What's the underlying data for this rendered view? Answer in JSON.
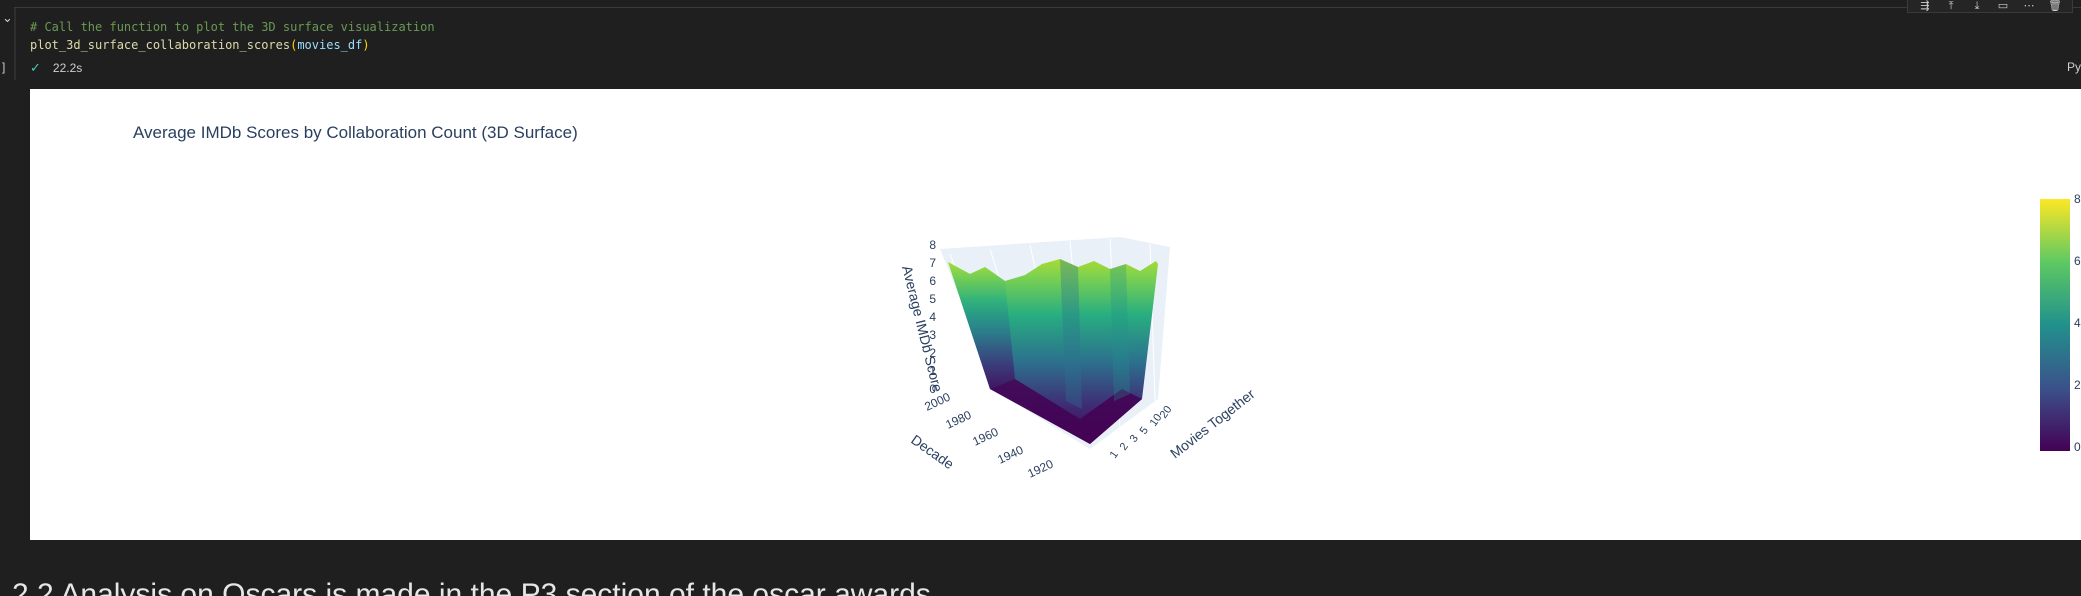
{
  "code": {
    "comment": "# Call the function to plot the 3D surface visualization",
    "function_name": "plot_3d_surface_collaboration_scores",
    "argument": "movies_df"
  },
  "status": {
    "duration": "22.2s",
    "language": "Py"
  },
  "chart_data": {
    "type": "surface",
    "title": "Average IMDb Scores by Collaboration Count (3D Surface)",
    "zlabel": "Average IMDb Score",
    "xlabel": "Decade",
    "ylabel": "Movies Together",
    "z_ticks": [
      "0",
      "1",
      "2",
      "3",
      "4",
      "5",
      "6",
      "7",
      "8"
    ],
    "x_ticks": [
      "2000",
      "1980",
      "1960",
      "1940",
      "1920"
    ],
    "colorscale": "Viridis",
    "colorbar_ticks": [
      "0",
      "2",
      "4",
      "6",
      "8"
    ],
    "colors": [
      "#440154",
      "#3b528b",
      "#21918c",
      "#5ec962",
      "#fde725"
    ]
  },
  "markdown": {
    "heading": "2.2 Analysis on Oscars is made in the P3 section of the oscar awards"
  }
}
